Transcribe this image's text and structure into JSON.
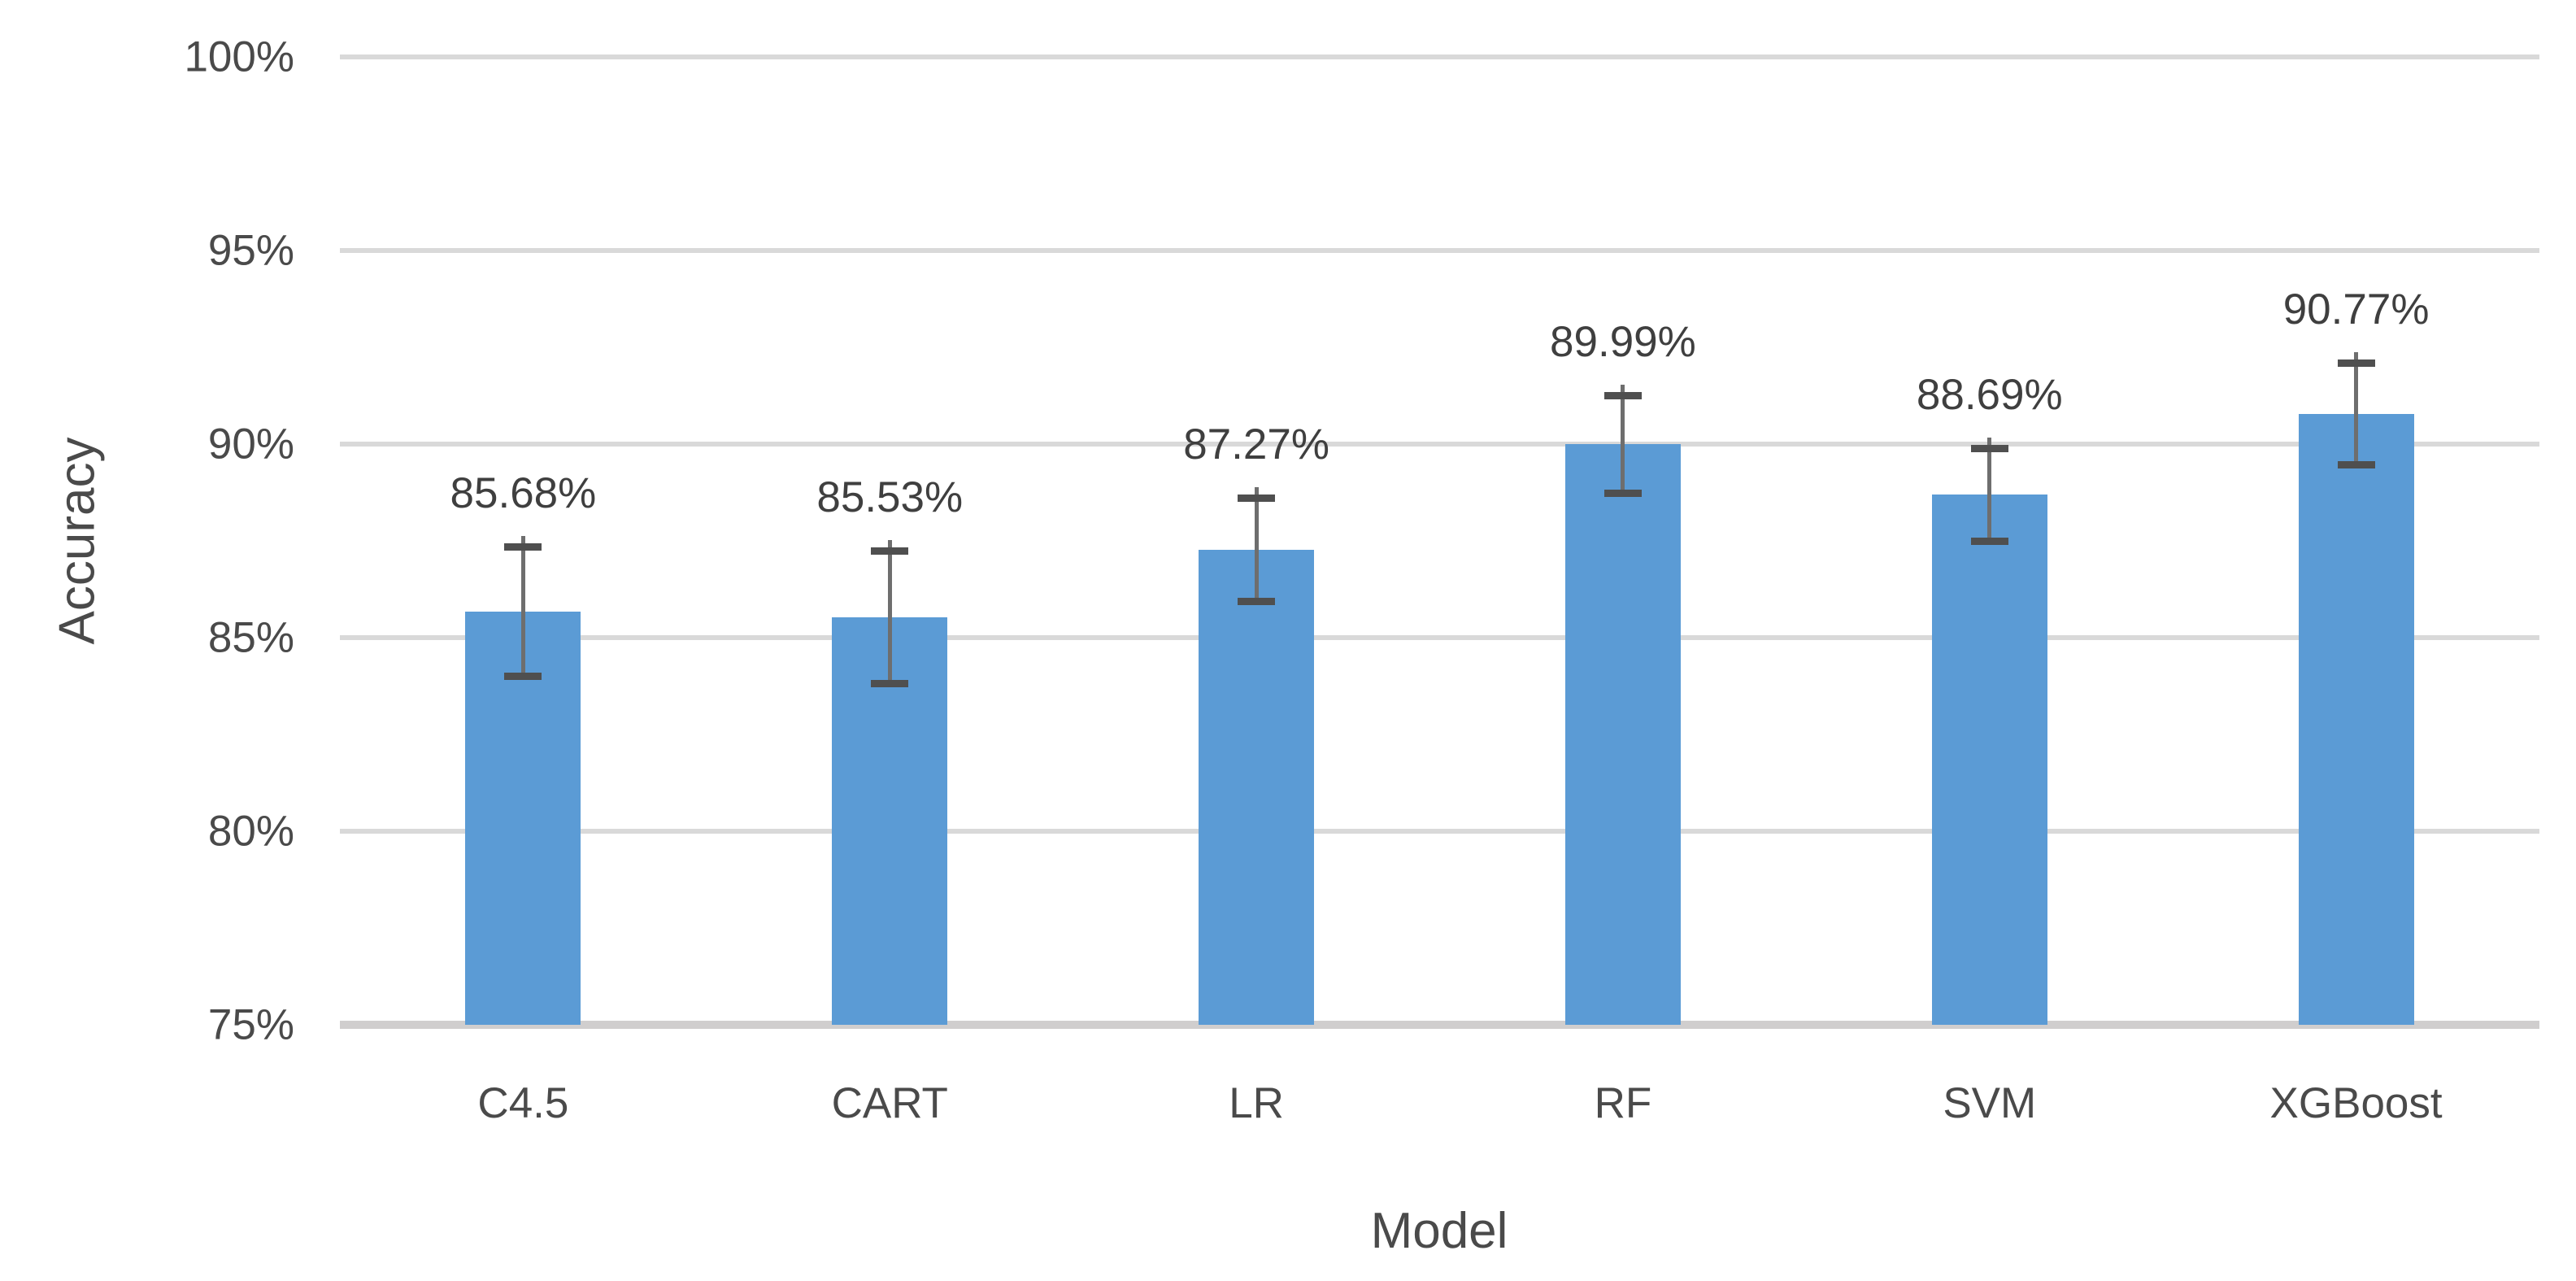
{
  "chart_data": {
    "type": "bar",
    "title": "",
    "xlabel": "Model",
    "ylabel": "Accuracy",
    "categories": [
      "C4.5",
      "CART",
      "LR",
      "RF",
      "SVM",
      "XGBoost"
    ],
    "values": [
      85.68,
      85.53,
      87.27,
      89.99,
      88.69,
      90.77
    ],
    "data_labels": [
      "85.68%",
      "85.53%",
      "87.27%",
      "89.99%",
      "88.69%",
      "90.77%"
    ],
    "error_bars_plus_minus": [
      1.66,
      1.7,
      1.33,
      1.26,
      1.18,
      1.3
    ],
    "ylim": [
      75,
      100
    ],
    "yticks": [
      {
        "value": 100,
        "label": "100%"
      },
      {
        "value": 95,
        "label": "95%"
      },
      {
        "value": 90,
        "label": "90%"
      },
      {
        "value": 85,
        "label": "85%"
      },
      {
        "value": 80,
        "label": "80%"
      },
      {
        "value": 75,
        "label": "75%"
      }
    ],
    "grid": "horizontal",
    "legend_position": "none",
    "colors": {
      "bar": "#5B9BD5",
      "gridline": "#D9D9D9",
      "axis_line": "#D0CECE",
      "axis_text": "#4A4A4A",
      "data_label_text": "#3F3F3F",
      "error_whisker": "#6E6E6E",
      "error_cap": "#4F4F4F",
      "background": "#FFFFFF"
    }
  }
}
